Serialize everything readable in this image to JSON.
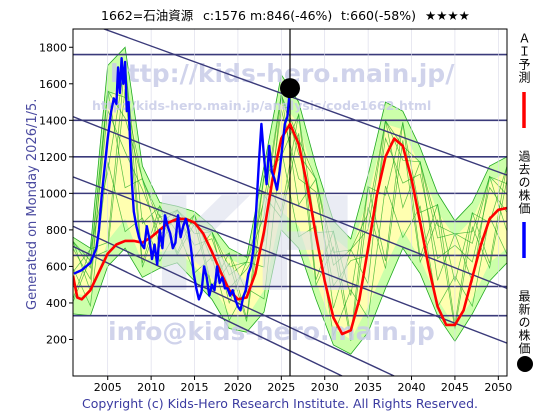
{
  "header": {
    "code_name": "1662=石油資源",
    "current": "c:1576",
    "mid": "m:846(-46%)",
    "target": "t:660(-58%)",
    "stars": "★★★★"
  },
  "side_text": "Generated on Monday 2026/1/5.",
  "watermarks": {
    "url": "http://kids-hero.main.jp/",
    "analysis_url": "http://kids-hero.main.jp/analysis/code1662.html",
    "logo": "KH",
    "email": "info@kids-hero.main.jp"
  },
  "legend": {
    "forecast": "ＡＩ予測",
    "past": "過去の株価",
    "latest": "最新の株価"
  },
  "copyright": "Copyright (c) Kids-Hero Research Institute. All Rights Reserved.",
  "colors": {
    "forecast": "#ff0000",
    "past": "#0000ff",
    "latest": "#000000",
    "band_dark": "#22aa22",
    "band_light": "#ccffaa",
    "band_yellow": "#ffffb0",
    "grid": "#3a3a7a"
  },
  "chart_data": {
    "type": "line",
    "xlim": [
      2001,
      2051
    ],
    "ylim": [
      0,
      1900
    ],
    "xticks": [
      2005,
      2010,
      2015,
      2020,
      2025,
      2030,
      2035,
      2040,
      2045,
      2050
    ],
    "yticks": [
      200,
      400,
      600,
      800,
      1000,
      1200,
      1400,
      1600,
      1800
    ],
    "hlines": [
      1760,
      1400,
      1200,
      1000,
      846,
      660,
      490,
      330
    ],
    "vline_x": 2026,
    "trend_lines": [
      {
        "x": [
          2004,
          2051
        ],
        "y": [
          1910,
          1100
        ]
      },
      {
        "x": [
          2001,
          2051
        ],
        "y": [
          1420,
          480
        ]
      },
      {
        "x": [
          2001,
          2051
        ],
        "y": [
          1090,
          180
        ]
      },
      {
        "x": [
          2001,
          2038
        ],
        "y": [
          820,
          0
        ]
      },
      {
        "x": [
          2001,
          2032
        ],
        "y": [
          710,
          0
        ]
      }
    ],
    "series": [
      {
        "name": "過去の株価",
        "x": [
          2001.1,
          2002.0,
          2003.0,
          2003.7,
          2004.0,
          2004.3,
          2004.6,
          2005.0,
          2005.4,
          2005.7,
          2006.0,
          2006.2,
          2006.4,
          2006.6,
          2006.8,
          2007.0,
          2007.2,
          2007.4,
          2007.6,
          2007.8,
          2008.0,
          2008.3,
          2008.6,
          2008.9,
          2009.2,
          2009.5,
          2009.8,
          2010.1,
          2010.4,
          2010.7,
          2011.0,
          2011.3,
          2011.6,
          2011.9,
          2012.2,
          2012.5,
          2012.8,
          2013.1,
          2013.4,
          2013.7,
          2014.0,
          2014.3,
          2014.6,
          2014.9,
          2015.2,
          2015.5,
          2015.8,
          2016.1,
          2016.4,
          2016.7,
          2017.0,
          2017.3,
          2017.6,
          2017.9,
          2018.2,
          2018.5,
          2018.8,
          2019.1,
          2019.4,
          2019.7,
          2020.0,
          2020.3,
          2020.6,
          2020.9,
          2021.2,
          2021.5,
          2021.8,
          2022.1,
          2022.4,
          2022.7,
          2023.0,
          2023.3,
          2023.6,
          2023.9,
          2024.2,
          2024.5,
          2024.8,
          2025.1,
          2025.4,
          2025.7,
          2026.0
        ],
        "y": [
          560,
          580,
          620,
          700,
          800,
          980,
          1120,
          1300,
          1450,
          1520,
          1490,
          1690,
          1550,
          1740,
          1600,
          1720,
          1450,
          1500,
          1250,
          1050,
          900,
          820,
          760,
          720,
          700,
          820,
          750,
          640,
          720,
          610,
          800,
          700,
          880,
          820,
          780,
          700,
          730,
          880,
          760,
          820,
          860,
          800,
          700,
          560,
          480,
          420,
          460,
          600,
          540,
          440,
          500,
          470,
          600,
          510,
          540,
          480,
          480,
          440,
          470,
          420,
          380,
          360,
          430,
          470,
          560,
          600,
          700,
          900,
          1160,
          1380,
          1200,
          1050,
          1260,
          1120,
          1080,
          1020,
          1120,
          1250,
          1380,
          1420,
          1576
        ]
      },
      {
        "name": "ＡＩ予測",
        "x": [
          2001,
          2001.5,
          2002,
          2003,
          2004,
          2005,
          2006,
          2007,
          2008,
          2009,
          2010,
          2011,
          2012,
          2013,
          2014,
          2015,
          2016,
          2017,
          2018,
          2019,
          2020,
          2021,
          2022,
          2023,
          2024,
          2025,
          2026,
          2027,
          2028,
          2029,
          2030,
          2031,
          2032,
          2033,
          2034,
          2035,
          2036,
          2037,
          2038,
          2039,
          2040,
          2041,
          2042,
          2043,
          2044,
          2045,
          2046,
          2047,
          2048,
          2049,
          2050,
          2051
        ],
        "y": [
          550,
          430,
          420,
          470,
          570,
          670,
          720,
          740,
          740,
          730,
          760,
          800,
          840,
          860,
          860,
          840,
          780,
          680,
          570,
          470,
          420,
          430,
          560,
          790,
          1080,
          1300,
          1380,
          1270,
          1040,
          770,
          520,
          320,
          230,
          250,
          420,
          700,
          990,
          1200,
          1300,
          1260,
          1080,
          840,
          590,
          380,
          280,
          280,
          360,
          540,
          720,
          860,
          910,
          920
        ]
      }
    ],
    "latest_point": {
      "x": 2026.0,
      "y": 1576
    },
    "bands": {
      "outer": [
        [
          2001,
          760,
          340
        ],
        [
          2003,
          700,
          330
        ],
        [
          2005,
          1700,
          600
        ],
        [
          2007,
          1800,
          700
        ],
        [
          2009,
          1150,
          540
        ],
        [
          2011,
          950,
          590
        ],
        [
          2013,
          930,
          620
        ],
        [
          2015,
          900,
          520
        ],
        [
          2017,
          820,
          420
        ],
        [
          2019,
          700,
          260
        ],
        [
          2021,
          650,
          240
        ],
        [
          2023,
          1150,
          350
        ],
        [
          2025,
          1650,
          800
        ],
        [
          2027,
          1500,
          700
        ],
        [
          2029,
          1150,
          420
        ],
        [
          2031,
          850,
          170
        ],
        [
          2033,
          750,
          120
        ],
        [
          2035,
          1100,
          240
        ],
        [
          2037,
          1500,
          480
        ],
        [
          2039,
          1450,
          700
        ],
        [
          2041,
          1250,
          560
        ],
        [
          2043,
          1000,
          330
        ],
        [
          2045,
          850,
          190
        ],
        [
          2047,
          950,
          340
        ],
        [
          2049,
          1150,
          520
        ],
        [
          2051,
          1200,
          620
        ]
      ],
      "inner": [
        [
          2001,
          690,
          450
        ],
        [
          2003,
          640,
          440
        ],
        [
          2005,
          1500,
          740
        ],
        [
          2007,
          1650,
          860
        ],
        [
          2009,
          1050,
          620
        ],
        [
          2011,
          880,
          680
        ],
        [
          2013,
          880,
          690
        ],
        [
          2015,
          850,
          600
        ],
        [
          2017,
          760,
          500
        ],
        [
          2019,
          640,
          340
        ],
        [
          2021,
          600,
          320
        ],
        [
          2023,
          1050,
          470
        ],
        [
          2025,
          1500,
          900
        ],
        [
          2027,
          1380,
          820
        ],
        [
          2029,
          1050,
          520
        ],
        [
          2031,
          760,
          260
        ],
        [
          2033,
          680,
          200
        ],
        [
          2035,
          980,
          380
        ],
        [
          2037,
          1380,
          600
        ],
        [
          2039,
          1350,
          800
        ],
        [
          2041,
          1150,
          640
        ],
        [
          2043,
          900,
          420
        ],
        [
          2045,
          760,
          270
        ],
        [
          2047,
          860,
          420
        ],
        [
          2049,
          1060,
          620
        ],
        [
          2051,
          1120,
          700
        ]
      ]
    },
    "band_lines": [
      [
        0,
        30
      ],
      [
        15,
        -25
      ],
      [
        -20,
        20
      ],
      [
        35,
        -10
      ],
      [
        -35,
        -20
      ],
      [
        5,
        45
      ],
      [
        25,
        15
      ],
      [
        -10,
        -40
      ]
    ],
    "xlabel": "",
    "ylabel": ""
  }
}
